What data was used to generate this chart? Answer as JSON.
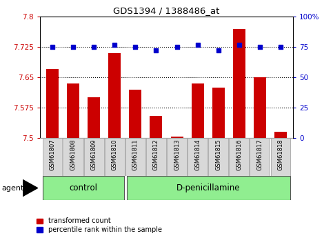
{
  "title": "GDS1394 / 1388486_at",
  "samples": [
    "GSM61807",
    "GSM61808",
    "GSM61809",
    "GSM61810",
    "GSM61811",
    "GSM61812",
    "GSM61813",
    "GSM61814",
    "GSM61815",
    "GSM61816",
    "GSM61817",
    "GSM61818"
  ],
  "red_values": [
    7.67,
    7.635,
    7.6,
    7.71,
    7.62,
    7.555,
    7.503,
    7.635,
    7.625,
    7.77,
    7.65,
    7.515
  ],
  "blue_values": [
    75,
    75,
    75,
    77,
    75,
    72,
    75,
    77,
    72,
    77,
    75,
    75
  ],
  "ylim_left": [
    7.5,
    7.8
  ],
  "ylim_right": [
    0,
    100
  ],
  "yticks_left": [
    7.5,
    7.575,
    7.65,
    7.725,
    7.8
  ],
  "ytick_labels_left": [
    "7.5",
    "7.575",
    "7.65",
    "7.725",
    "7.8"
  ],
  "yticks_right": [
    0,
    25,
    50,
    75,
    100
  ],
  "ytick_labels_right": [
    "0",
    "25",
    "50",
    "75",
    "100%"
  ],
  "hlines": [
    7.575,
    7.65,
    7.725
  ],
  "bar_color": "#cc0000",
  "dot_color": "#0000cc",
  "n_control": 4,
  "n_treatment": 8,
  "control_label": "control",
  "treatment_label": "D-penicillamine",
  "agent_label": "agent",
  "legend_red": "transformed count",
  "legend_blue": "percentile rank within the sample",
  "bar_width": 0.6
}
